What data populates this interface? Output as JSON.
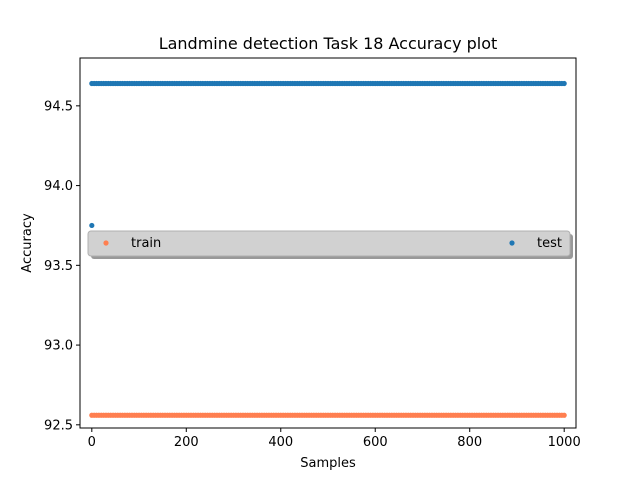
{
  "chart_data": {
    "type": "scatter",
    "title": "Landmine detection Task 18 Accuracy plot",
    "xlabel": "Samples",
    "ylabel": "Accuracy",
    "xlim": [
      -25,
      1025
    ],
    "ylim": [
      92.48,
      94.8
    ],
    "xticks": [
      "0",
      "200",
      "400",
      "600",
      "800",
      "1000"
    ],
    "xtick_values": [
      0,
      200,
      400,
      600,
      800,
      1000
    ],
    "yticks": [
      "92.5",
      "93.0",
      "93.5",
      "94.0",
      "94.5"
    ],
    "ytick_values": [
      92.5,
      93.0,
      93.5,
      94.0,
      94.5
    ],
    "grid": false,
    "legend": {
      "placement": "center",
      "columns": 2
    },
    "series": [
      {
        "name": "train",
        "color": "#ff7f50",
        "x_start": 0,
        "x_end": 1000,
        "x_step": 5,
        "y": 92.56
      },
      {
        "name": "test",
        "color": "#1f77b4",
        "x_start": 0,
        "x_end": 1000,
        "x_step": 5,
        "y": 94.64,
        "outliers": [
          {
            "x": 0,
            "y": 93.75
          }
        ]
      }
    ]
  }
}
